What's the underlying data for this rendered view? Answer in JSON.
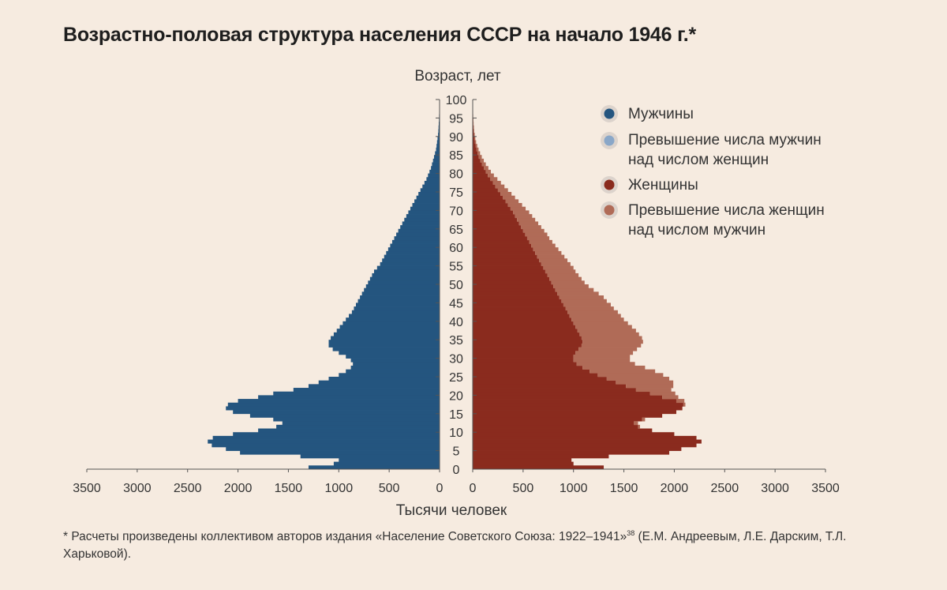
{
  "title": "Возрастно-половая структура населения СССР на начало 1946 г.*",
  "footnote": {
    "text": "* Расчеты произведены коллективом авторов издания «Население Советского Союза: 1922–1941»",
    "ref": "38",
    "text_after": " (Е.М. Андреевым, Л.Е. Дарским, Т.Л. Харьковой)."
  },
  "colors": {
    "male": "#24557f",
    "male_surplus": "#8aa7c8",
    "female": "#8a2b1e",
    "female_surplus": "#b06b57",
    "axis": "#555555"
  },
  "chart_data": {
    "type": "bar",
    "orientation": "horizontal population pyramid",
    "ylabel": "Возраст, лет",
    "xlabel": "Тысячи человек",
    "age_ticks": [
      0,
      5,
      10,
      15,
      20,
      25,
      30,
      35,
      40,
      45,
      50,
      55,
      60,
      65,
      70,
      75,
      80,
      85,
      90,
      95,
      100
    ],
    "x_ticks_left": [
      3500,
      3000,
      2500,
      2000,
      1500,
      1000,
      500,
      0
    ],
    "x_ticks_right": [
      0,
      500,
      1000,
      1500,
      2000,
      2500,
      3000,
      3500
    ],
    "xlim": [
      0,
      3500
    ],
    "ylim": [
      0,
      100
    ],
    "legend": [
      {
        "key": "male",
        "label": "Мужчины"
      },
      {
        "key": "male_surplus",
        "label": "Превышение числа мужчин над числом женщин"
      },
      {
        "key": "female",
        "label": "Женщины"
      },
      {
        "key": "female_surplus",
        "label": "Превышение числа женщин над числом мужчин"
      }
    ],
    "legend_position": "top-right",
    "ages": [
      0,
      1,
      2,
      3,
      4,
      5,
      6,
      7,
      8,
      9,
      10,
      11,
      12,
      13,
      14,
      15,
      16,
      17,
      18,
      19,
      20,
      21,
      22,
      23,
      24,
      25,
      26,
      27,
      28,
      29,
      30,
      31,
      32,
      33,
      34,
      35,
      36,
      37,
      38,
      39,
      40,
      41,
      42,
      43,
      44,
      45,
      46,
      47,
      48,
      49,
      50,
      51,
      52,
      53,
      54,
      55,
      56,
      57,
      58,
      59,
      60,
      61,
      62,
      63,
      64,
      65,
      66,
      67,
      68,
      69,
      70,
      71,
      72,
      73,
      74,
      75,
      76,
      77,
      78,
      79,
      80,
      81,
      82,
      83,
      84,
      85,
      86,
      87,
      88,
      89,
      90,
      91,
      92,
      93,
      94,
      95,
      96,
      97,
      98,
      99
    ],
    "series": [
      {
        "name": "Мужчины",
        "values": [
          1300,
          1050,
          1000,
          1380,
          1980,
          2120,
          2260,
          2300,
          2250,
          2050,
          1800,
          1620,
          1560,
          1650,
          1880,
          2050,
          2120,
          2100,
          2000,
          1800,
          1650,
          1450,
          1300,
          1200,
          1100,
          1000,
          930,
          880,
          860,
          880,
          930,
          1000,
          1060,
          1100,
          1100,
          1080,
          1050,
          1020,
          990,
          960,
          930,
          900,
          870,
          850,
          830,
          810,
          790,
          770,
          750,
          730,
          710,
          690,
          670,
          650,
          620,
          590,
          570,
          550,
          530,
          510,
          490,
          470,
          450,
          430,
          410,
          390,
          370,
          350,
          330,
          310,
          290,
          270,
          250,
          230,
          210,
          190,
          170,
          150,
          130,
          115,
          100,
          85,
          75,
          65,
          55,
          45,
          35,
          30,
          25,
          20,
          15,
          12,
          10,
          8,
          6,
          5,
          4,
          3,
          2,
          1
        ]
      },
      {
        "name": "Женщины",
        "values": [
          1300,
          1000,
          980,
          1350,
          1950,
          2070,
          2220,
          2270,
          2220,
          2000,
          1780,
          1640,
          1600,
          1680,
          1880,
          2020,
          2080,
          2090,
          2020,
          1880,
          1760,
          1620,
          1520,
          1420,
          1330,
          1240,
          1160,
          1090,
          1030,
          1000,
          1000,
          1020,
          1050,
          1080,
          1090,
          1080,
          1060,
          1040,
          1020,
          1000,
          980,
          960,
          940,
          920,
          900,
          880,
          860,
          840,
          820,
          800,
          780,
          760,
          740,
          720,
          700,
          680,
          660,
          640,
          620,
          600,
          580,
          560,
          540,
          520,
          500,
          480,
          460,
          440,
          420,
          400,
          375,
          350,
          325,
          300,
          275,
          250,
          225,
          200,
          175,
          150,
          130,
          110,
          90,
          75,
          60,
          48,
          38,
          30,
          22,
          16,
          12,
          9,
          7,
          5,
          4,
          3,
          2,
          1,
          1,
          0
        ]
      },
      {
        "name": "Превышение числа женщин над числом мужчин",
        "values": [
          0,
          0,
          0,
          0,
          0,
          0,
          0,
          0,
          0,
          0,
          0,
          20,
          40,
          30,
          0,
          0,
          0,
          20,
          80,
          160,
          250,
          350,
          470,
          570,
          620,
          650,
          650,
          620,
          580,
          560,
          560,
          570,
          580,
          590,
          600,
          600,
          590,
          580,
          560,
          540,
          520,
          510,
          500,
          480,
          470,
          450,
          440,
          410,
          380,
          350,
          330,
          320,
          310,
          300,
          300,
          290,
          280,
          270,
          260,
          250,
          240,
          230,
          220,
          220,
          210,
          200,
          190,
          180,
          170,
          160,
          150,
          140,
          130,
          120,
          110,
          100,
          90,
          80,
          70,
          60,
          50,
          45,
          40,
          35,
          30,
          25,
          20,
          15,
          12,
          10,
          8,
          6,
          5,
          4,
          3,
          2,
          2,
          1,
          1,
          0
        ]
      }
    ]
  }
}
